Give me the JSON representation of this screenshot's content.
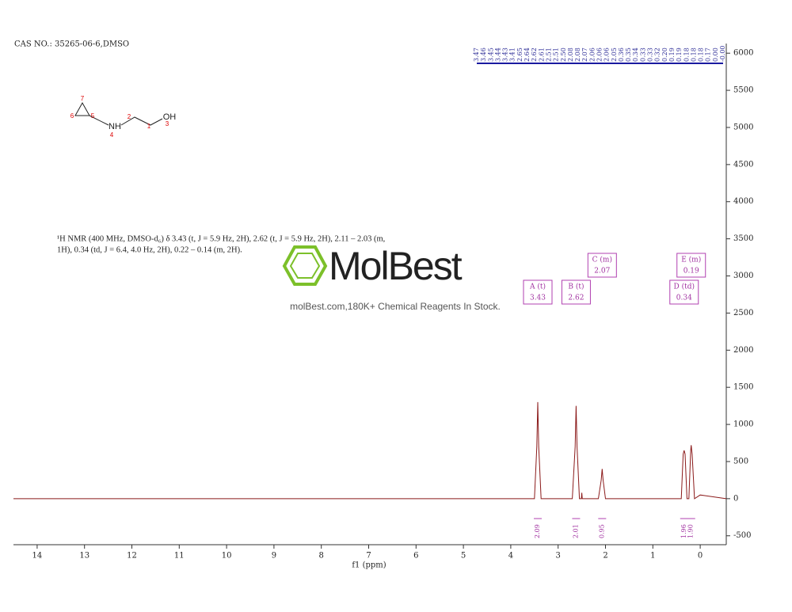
{
  "header": {
    "cas": "CAS NO.: 35265-06-6,DMSO"
  },
  "structure": {
    "atoms": [
      "7",
      "6",
      "5",
      "NH",
      "4",
      "2",
      "1",
      "OH",
      "3"
    ]
  },
  "description": {
    "lines": [
      "¹H NMR (400 MHz, DMSO-d₆) δ 3.43 (t, J = 5.9 Hz, 2H), 2.62 (t, J = 5.9 Hz, 2H), 2.11 – 2.03 (m,",
      "1H), 0.34 (td, J = 6.4, 4.0 Hz, 2H), 0.22 – 0.14 (m, 2H)."
    ]
  },
  "watermark": {
    "brand": "MolBest",
    "tagline": "molBest.com,180K+ Chemical Reagents In Stock."
  },
  "chart_data": {
    "type": "line",
    "x_label": "f1 (ppm)",
    "color": "#8b1a1a",
    "xlim": [
      14.5,
      -0.55
    ],
    "xticks": [
      14,
      13,
      12,
      11,
      10,
      9,
      8,
      7,
      6,
      5,
      4,
      3,
      2,
      1,
      0
    ],
    "ylim": [
      -620,
      6130
    ],
    "yticks": [
      -500,
      0,
      500,
      1000,
      1500,
      2000,
      2500,
      3000,
      3500,
      4000,
      4500,
      5000,
      5500,
      6000
    ],
    "x": [
      14.5,
      3.5,
      3.45,
      3.43,
      3.41,
      3.36,
      2.7,
      2.64,
      2.62,
      2.6,
      2.55,
      2.51,
      2.5,
      2.49,
      2.15,
      2.09,
      2.07,
      2.05,
      2.0,
      0.4,
      0.36,
      0.34,
      0.32,
      0.28,
      0.24,
      0.2,
      0.19,
      0.17,
      0.12,
      0.0,
      -0.55
    ],
    "values": [
      0,
      0,
      700,
      1300,
      700,
      0,
      0,
      700,
      1250,
      700,
      0,
      0,
      80,
      0,
      0,
      250,
      400,
      250,
      0,
      0,
      600,
      650,
      600,
      0,
      0,
      650,
      720,
      600,
      0,
      50,
      0
    ],
    "peak_labels": [
      "3.47",
      "3.46",
      "3.45",
      "3.44",
      "3.43",
      "3.41",
      "2.65",
      "2.64",
      "2.62",
      "2.61",
      "2.51",
      "2.51",
      "2.50",
      "2.08",
      "2.08",
      "2.07",
      "2.06",
      "2.06",
      "2.06",
      "2.05",
      "0.36",
      "0.35",
      "0.34",
      "0.33",
      "0.33",
      "0.32",
      "0.20",
      "0.19",
      "0.19",
      "0.18",
      "0.18",
      "0.18",
      "0.17",
      "0.00",
      "-0.00"
    ],
    "multiplets": [
      {
        "label": "A (t)",
        "shift": "3.43",
        "center": 3.43
      },
      {
        "label": "B (t)",
        "shift": "2.62",
        "center": 2.62
      },
      {
        "label": "C (m)",
        "shift": "2.07",
        "center": 2.07
      },
      {
        "label": "D (td)",
        "shift": "0.34",
        "center": 0.34
      },
      {
        "label": "E (m)",
        "shift": "0.19",
        "center": 0.19
      }
    ],
    "integrals": [
      {
        "label": "2.09",
        "center": 3.43
      },
      {
        "label": "2.01",
        "center": 2.62
      },
      {
        "label": "0.95",
        "center": 2.07
      },
      {
        "label": "1.96",
        "center": 0.34
      },
      {
        "label": "1.90",
        "center": 0.19
      }
    ]
  }
}
